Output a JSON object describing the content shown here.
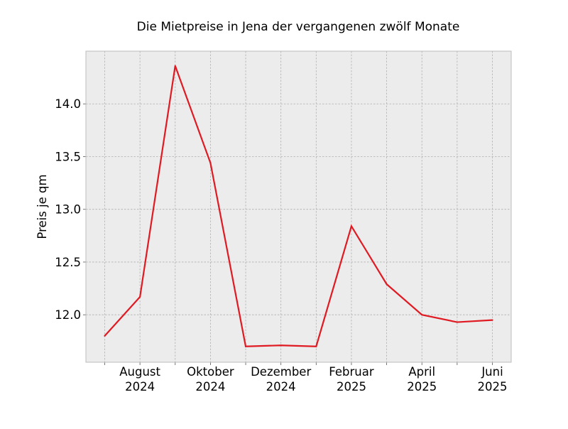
{
  "chart_data": {
    "type": "line",
    "title": "Die Mietpreise in Jena der vergangenen zwölf Monate",
    "xlabel": "",
    "ylabel": "Preis je qm",
    "x": [
      "2024-07",
      "2024-08",
      "2024-09",
      "2024-10",
      "2024-11",
      "2024-12",
      "2025-01",
      "2025-02",
      "2025-03",
      "2025-04",
      "2025-05",
      "2025-06"
    ],
    "series": [
      {
        "values": [
          11.8,
          12.17,
          14.36,
          13.44,
          11.7,
          11.71,
          11.7,
          12.84,
          12.29,
          12.0,
          11.93,
          11.95
        ]
      }
    ],
    "ylim": [
      11.55,
      14.5
    ],
    "yticks": [
      12.0,
      12.5,
      13.0,
      13.5,
      14.0
    ],
    "ytick_labels": [
      "12.0",
      "12.5",
      "13.0",
      "13.5",
      "14.0"
    ],
    "xticks_labeled": [
      {
        "x": "2024-08",
        "line1": "August",
        "line2": "2024"
      },
      {
        "x": "2024-10",
        "line1": "Oktober",
        "line2": "2024"
      },
      {
        "x": "2024-12",
        "line1": "Dezember",
        "line2": "2024"
      },
      {
        "x": "2025-02",
        "line1": "Februar",
        "line2": "2025"
      },
      {
        "x": "2025-04",
        "line1": "April",
        "line2": "2025"
      },
      {
        "x": "2025-06",
        "line1": "Juni",
        "line2": "2025"
      }
    ],
    "grid": true,
    "colors": {
      "line": "#e01a22",
      "plot_background": "#ececec",
      "grid": "#b0b0b0",
      "frame": "#bcbcbc"
    }
  }
}
